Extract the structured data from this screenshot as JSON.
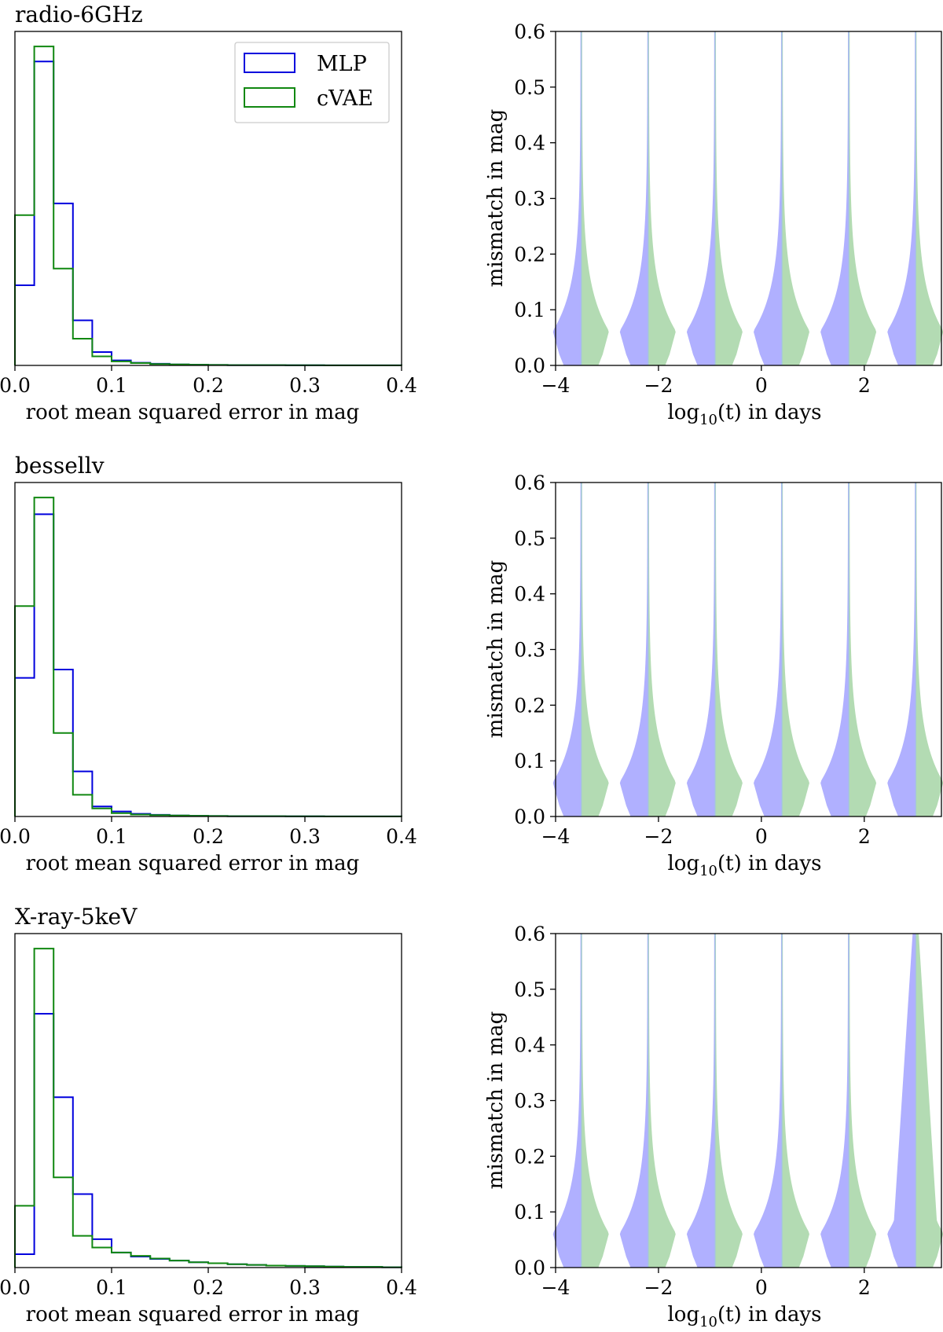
{
  "chart_data": [
    {
      "type": "step-histogram",
      "title": "radio-6GHz",
      "xlabel": "root mean squared error in mag",
      "ylabel": "",
      "xlim": [
        0,
        0.4
      ],
      "x_ticks": [
        "0.0",
        "0.1",
        "0.2",
        "0.3",
        "0.4"
      ],
      "bin_width": 0.02,
      "ymax": 1.0,
      "series": [
        {
          "name": "MLP",
          "color": "#0000dd",
          "values": [
            0.24,
            0.91,
            0.485,
            0.135,
            0.04,
            0.015,
            0.008,
            0.005,
            0.003,
            0.002,
            0.0015,
            0.001,
            0.001,
            0.0008,
            0.0006,
            0.0005,
            0.0004,
            0.0003,
            0.0002,
            0.0002
          ]
        },
        {
          "name": "cVAE",
          "color": "#118811",
          "values": [
            0.45,
            0.955,
            0.29,
            0.08,
            0.027,
            0.012,
            0.007,
            0.004,
            0.003,
            0.002,
            0.0015,
            0.001,
            0.001,
            0.0008,
            0.0006,
            0.0005,
            0.0004,
            0.0003,
            0.0002,
            0.0002
          ]
        }
      ],
      "legend": {
        "position": "upper-right",
        "entries": [
          "MLP",
          "cVAE"
        ]
      }
    },
    {
      "type": "split-violin",
      "xlabel": "log10(t) in days",
      "xlabel_base": "log",
      "xlabel_sub": "10",
      "xlabel_rest": "(t) in days",
      "ylabel": "mismatch in mag",
      "xlim": [
        -4,
        3.5
      ],
      "ylim": [
        0,
        0.6
      ],
      "x_ticks": [
        {
          "label": "−4",
          "value": -4
        },
        {
          "label": "−2",
          "value": -2
        },
        {
          "label": "0",
          "value": 0
        },
        {
          "label": "2",
          "value": 2
        }
      ],
      "y_ticks": [
        "0.0",
        "0.1",
        "0.2",
        "0.3",
        "0.4",
        "0.5",
        "0.6"
      ],
      "positions": [
        -3.5,
        -2.2,
        -0.9,
        0.4,
        1.7,
        3.0
      ],
      "colors": {
        "left": "#b0b0ff",
        "right": "#b3dbb3"
      }
    },
    {
      "type": "step-histogram",
      "title": "bessellv",
      "xlabel": "root mean squared error in mag",
      "ylabel": "",
      "xlim": [
        0,
        0.4
      ],
      "x_ticks": [
        "0.0",
        "0.1",
        "0.2",
        "0.3",
        "0.4"
      ],
      "bin_width": 0.02,
      "ymax": 1.0,
      "series": [
        {
          "name": "MLP",
          "color": "#0000dd",
          "values": [
            0.415,
            0.905,
            0.44,
            0.135,
            0.03,
            0.015,
            0.008,
            0.005,
            0.003,
            0.002,
            0.0015,
            0.001,
            0.001,
            0.0008,
            0.0006,
            0.0005,
            0.0004,
            0.0003,
            0.0002,
            0.0002
          ]
        },
        {
          "name": "cVAE",
          "color": "#118811",
          "values": [
            0.63,
            0.955,
            0.25,
            0.065,
            0.024,
            0.01,
            0.006,
            0.004,
            0.003,
            0.002,
            0.0015,
            0.001,
            0.001,
            0.0008,
            0.0006,
            0.0005,
            0.0004,
            0.0003,
            0.0002,
            0.0002
          ]
        }
      ]
    },
    {
      "type": "split-violin",
      "xlabel": "log10(t) in days",
      "xlabel_base": "log",
      "xlabel_sub": "10",
      "xlabel_rest": "(t) in days",
      "ylabel": "mismatch in mag",
      "xlim": [
        -4,
        3.5
      ],
      "ylim": [
        0,
        0.6
      ],
      "x_ticks": [
        {
          "label": "−4",
          "value": -4
        },
        {
          "label": "−2",
          "value": -2
        },
        {
          "label": "0",
          "value": 0
        },
        {
          "label": "2",
          "value": 2
        }
      ],
      "y_ticks": [
        "0.0",
        "0.1",
        "0.2",
        "0.3",
        "0.4",
        "0.5",
        "0.6"
      ],
      "positions": [
        -3.5,
        -2.2,
        -0.9,
        0.4,
        1.7,
        3.0
      ],
      "colors": {
        "left": "#b0b0ff",
        "right": "#b3dbb3"
      }
    },
    {
      "type": "step-histogram",
      "title": "X-ray-5keV",
      "xlabel": "root mean squared error in mag",
      "ylabel": "",
      "xlim": [
        0,
        0.4
      ],
      "x_ticks": [
        "0.0",
        "0.1",
        "0.2",
        "0.3",
        "0.4"
      ],
      "bin_width": 0.02,
      "ymax": 1.0,
      "series": [
        {
          "name": "MLP",
          "color": "#0000dd",
          "values": [
            0.04,
            0.76,
            0.51,
            0.22,
            0.085,
            0.045,
            0.033,
            0.026,
            0.021,
            0.016,
            0.013,
            0.01,
            0.008,
            0.006,
            0.005,
            0.004,
            0.003,
            0.002,
            0.002,
            0.001
          ]
        },
        {
          "name": "cVAE",
          "color": "#118811",
          "values": [
            0.185,
            0.955,
            0.27,
            0.095,
            0.06,
            0.045,
            0.035,
            0.027,
            0.021,
            0.016,
            0.013,
            0.01,
            0.008,
            0.006,
            0.005,
            0.004,
            0.003,
            0.002,
            0.002,
            0.001
          ]
        }
      ]
    },
    {
      "type": "split-violin",
      "xlabel": "log10(t) in days",
      "xlabel_base": "log",
      "xlabel_sub": "10",
      "xlabel_rest": "(t) in days",
      "ylabel": "mismatch in mag",
      "xlim": [
        -4,
        3.5
      ],
      "ylim": [
        0,
        0.6
      ],
      "x_ticks": [
        {
          "label": "−4",
          "value": -4
        },
        {
          "label": "−2",
          "value": -2
        },
        {
          "label": "0",
          "value": 0
        },
        {
          "label": "2",
          "value": 2
        }
      ],
      "y_ticks": [
        "0.0",
        "0.1",
        "0.2",
        "0.3",
        "0.4",
        "0.5",
        "0.6"
      ],
      "positions": [
        -3.5,
        -2.2,
        -0.9,
        0.4,
        1.7,
        3.0
      ],
      "colors": {
        "left": "#b0b0ff",
        "right": "#b3dbb3"
      },
      "wide_top": true
    }
  ]
}
